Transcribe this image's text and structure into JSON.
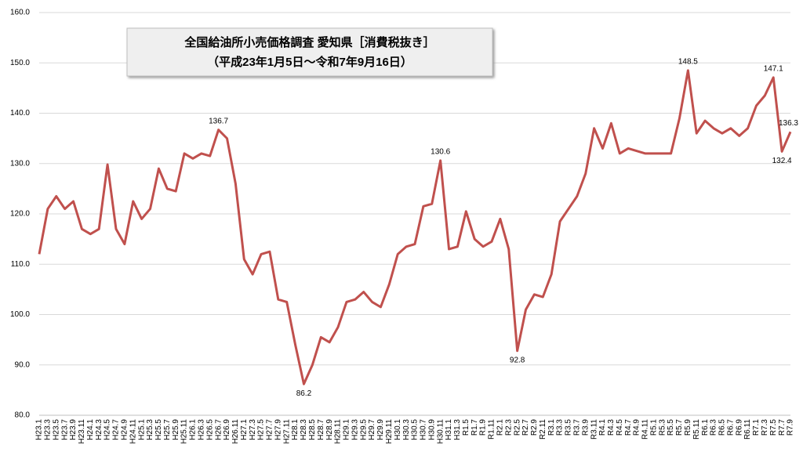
{
  "chart_data": {
    "type": "line",
    "title": "全国給油所小売価格調査 愛知県［消費税抜き］",
    "subtitle": "（平成23年1月5日～令和7年9月16日）",
    "categories": [
      "H23.1",
      "H23.3",
      "H23.5",
      "H23.7",
      "H23.9",
      "H23.11",
      "H24.1",
      "H24.3",
      "H24.5",
      "H24.7",
      "H24.9",
      "H24.11",
      "H25.1",
      "H25.3",
      "H25.5",
      "H25.7",
      "H25.9",
      "H25.11",
      "H26.1",
      "H26.3",
      "H26.5",
      "H26.7",
      "H26.9",
      "H26.11",
      "H27.1",
      "H27.3",
      "H27.5",
      "H27.7",
      "H27.9",
      "H27.11",
      "H28.1",
      "H28.3",
      "H28.5",
      "H28.7",
      "H28.9",
      "H28.11",
      "H29.1",
      "H29.3",
      "H29.5",
      "H29.7",
      "H29.9",
      "H29.11",
      "H30.1",
      "H30.3",
      "H30.5",
      "H30.7",
      "H30.9",
      "H30.11",
      "H31.1",
      "H31.3",
      "R1.5",
      "R1.7",
      "R1.9",
      "R1.11",
      "R2.1",
      "R2.3",
      "R2.5",
      "R2.7",
      "R2.9",
      "R2.11",
      "R3.1",
      "R3.3",
      "R3.5",
      "R3.7",
      "R3.9",
      "R3.11",
      "R4.1",
      "R4.3",
      "R4.5",
      "R4.7",
      "R4.9",
      "R4.11",
      "R5.1",
      "R5.3",
      "R5.5",
      "R5.7",
      "R5.9",
      "R5.11",
      "R6.1",
      "R6.3",
      "R6.5",
      "R6.7",
      "R6.9",
      "R6.11",
      "R7.1",
      "R7.3",
      "R7.5",
      "R7.7",
      "R7.9"
    ],
    "series": [
      {
        "color": "#c0504d",
        "values": [
          112,
          121,
          123.5,
          121,
          122.5,
          117,
          116,
          117,
          129.8,
          117,
          114,
          122.5,
          119,
          121,
          129,
          125,
          124.5,
          132,
          131,
          132,
          131.5,
          136.7,
          135,
          126,
          111,
          108,
          112,
          112.5,
          103,
          102.5,
          94,
          86.2,
          90,
          95.5,
          94.5,
          97.5,
          102.5,
          103,
          104.5,
          102.5,
          101.5,
          106,
          112,
          113.5,
          114,
          121.5,
          122,
          130.6,
          113,
          113.5,
          120.5,
          115,
          113.5,
          114.5,
          119,
          113,
          92.8,
          101,
          104,
          103.5,
          108,
          118.5,
          121,
          123.5,
          128,
          137,
          133,
          138,
          132,
          133,
          132.5,
          132,
          132,
          132,
          132,
          139,
          148.5,
          136,
          138.5,
          137,
          136,
          137,
          135.5,
          137,
          141.5,
          143.5,
          147.1,
          132.4,
          136.3
        ]
      }
    ],
    "annotations": [
      {
        "x": "H26.7",
        "y": 136.7
      },
      {
        "x": "H28.3",
        "y": 86.2
      },
      {
        "x": "H30.11",
        "y": 130.6
      },
      {
        "x": "R2.5",
        "y": 92.8
      },
      {
        "x": "R5.9",
        "y": 148.5
      },
      {
        "x": "R7.5",
        "y": 147.1
      },
      {
        "x": "R7.7",
        "y": 132.4
      },
      {
        "x": "R7.9",
        "y": 136.3
      }
    ],
    "ylim": [
      80,
      160
    ],
    "yticks": [
      {
        "value": 80,
        "label": "80.0"
      },
      {
        "value": 90,
        "label": "90.0"
      },
      {
        "value": 100,
        "label": "100.0"
      },
      {
        "value": 110,
        "label": "110.0"
      },
      {
        "value": 120,
        "label": "120.0"
      },
      {
        "value": 130,
        "label": "130.0"
      },
      {
        "value": 140,
        "label": "140.0"
      },
      {
        "value": 150,
        "label": "150.0"
      },
      {
        "value": 160,
        "label": "160.0"
      }
    ],
    "grid": true
  }
}
